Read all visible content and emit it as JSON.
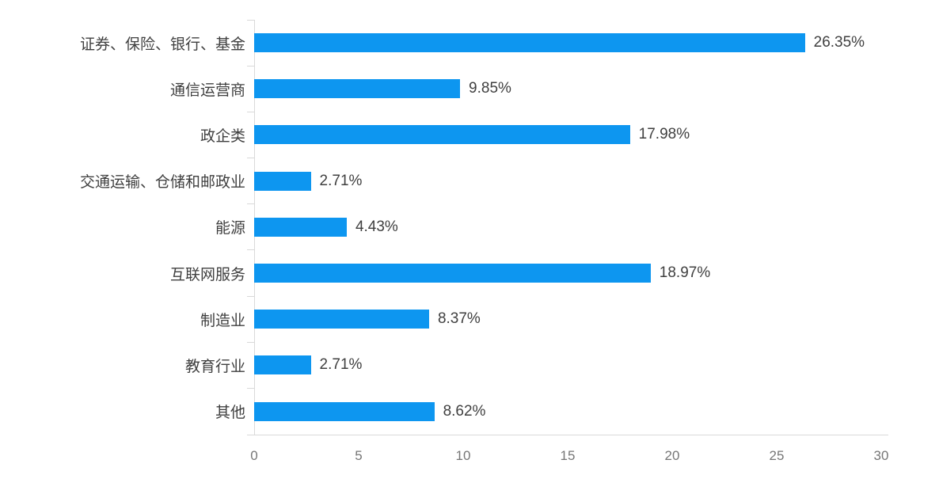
{
  "chart_data": {
    "type": "bar",
    "orientation": "horizontal",
    "categories": [
      "证券、保险、银行、基金",
      "通信运营商",
      "政企类",
      "交通运输、仓储和邮政业",
      "能源",
      "互联网服务",
      "制造业",
      "教育行业",
      "其他"
    ],
    "values": [
      26.35,
      9.85,
      17.98,
      2.71,
      4.43,
      18.97,
      8.37,
      2.71,
      8.62
    ],
    "value_labels": [
      "26.35%",
      "9.85%",
      "17.98%",
      "2.71%",
      "4.43%",
      "18.97%",
      "8.37%",
      "2.71%",
      "8.62%"
    ],
    "x_ticks": [
      "0",
      "5",
      "10",
      "15",
      "20",
      "25",
      "30"
    ],
    "x_tick_values": [
      0,
      5,
      10,
      15,
      20,
      25,
      30
    ],
    "xlim": [
      0,
      30
    ],
    "bar_color": "#0d96f0",
    "axis_line_color": "#d9d9d9",
    "label_color": "#3f3f3f",
    "tick_label_color": "#767676",
    "grid": false,
    "legend": "none"
  }
}
